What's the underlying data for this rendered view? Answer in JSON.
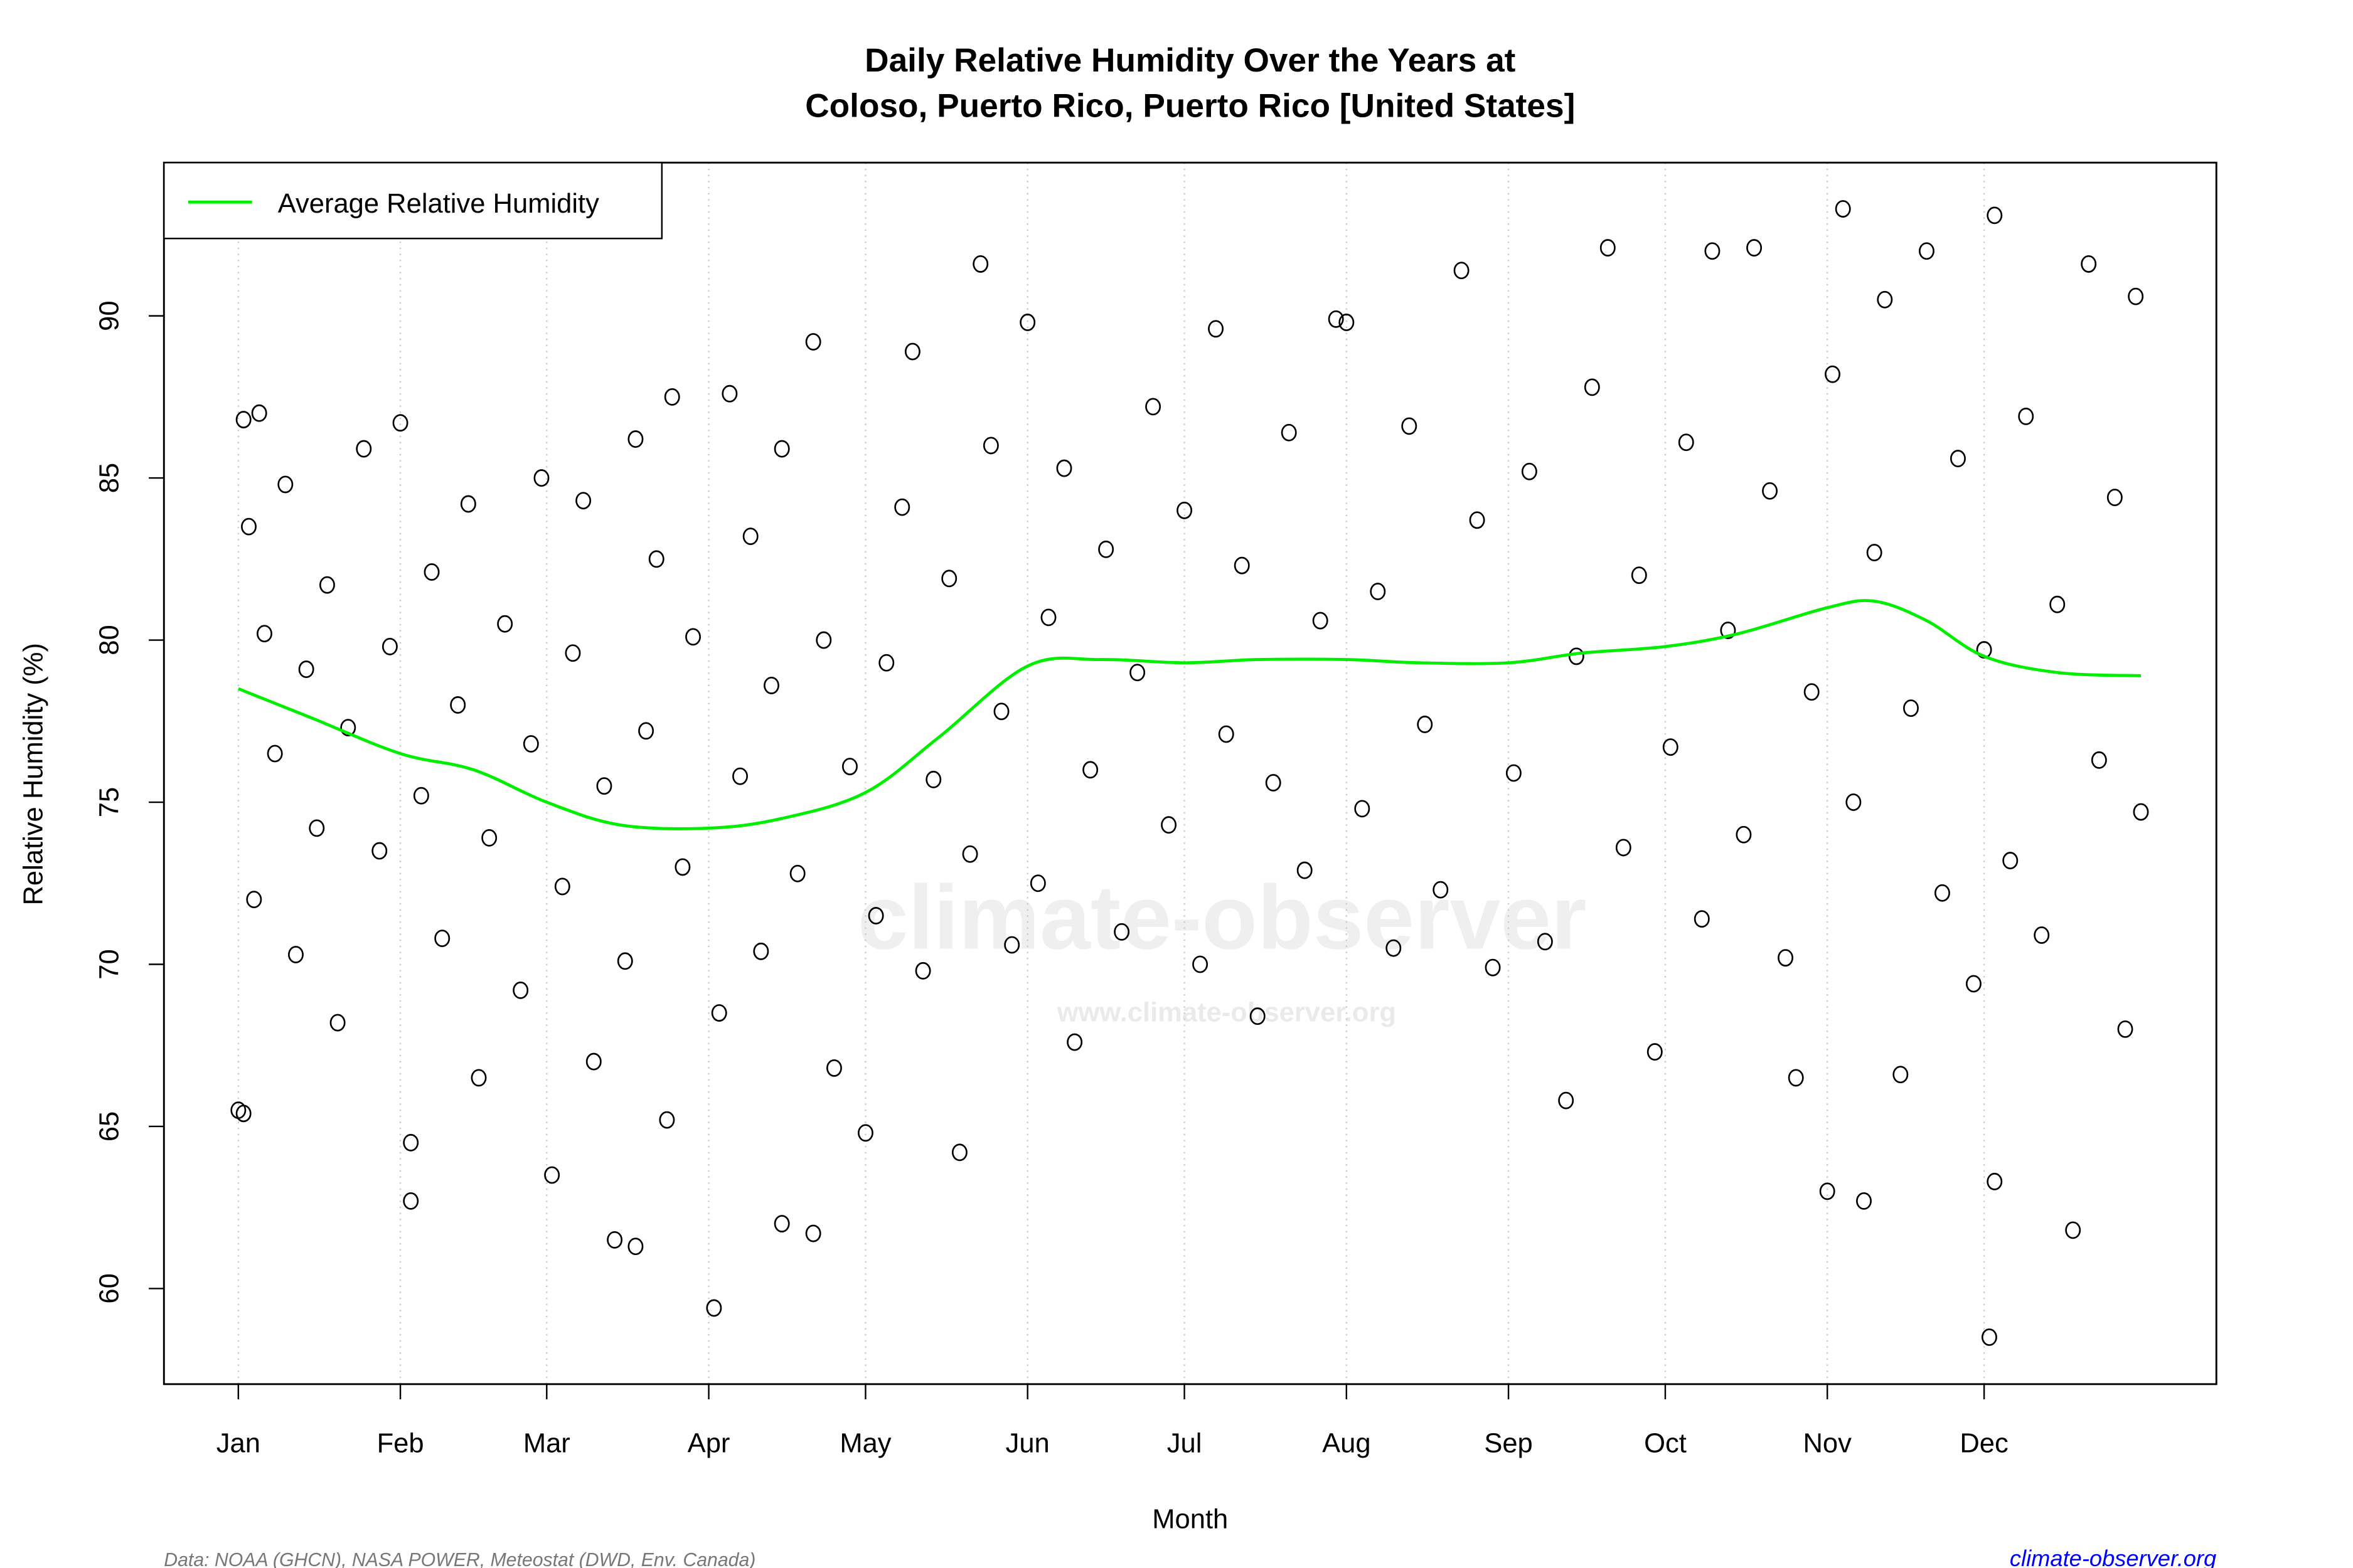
{
  "chart_data": {
    "type": "scatter",
    "title_line1": "Daily Relative Humidity Over the Years at",
    "title_line2": "Coloso, Puerto Rico, Puerto Rico [United States]",
    "xlabel": "Month",
    "ylabel": "Relative Humidity  (%)",
    "x_ticks": [
      "Jan",
      "Feb",
      "Mar",
      "Apr",
      "May",
      "Jun",
      "Jul",
      "Aug",
      "Sep",
      "Oct",
      "Nov",
      "Dec"
    ],
    "y_ticks": [
      60,
      65,
      70,
      75,
      80,
      85,
      90
    ],
    "ylim": [
      57.5,
      95
    ],
    "grid": "vertical dotted at month starts",
    "legend": {
      "placement": "top-left",
      "entries": [
        {
          "label": "Average Relative Humidity",
          "color": "#00ee00"
        }
      ]
    },
    "point_color": "#000000",
    "average_line": {
      "name": "Average Relative Humidity",
      "points": [
        [
          "01-01",
          78.5
        ],
        [
          "01-15",
          77.6
        ],
        [
          "02-01",
          76.5
        ],
        [
          "02-15",
          76.0
        ],
        [
          "03-01",
          75.0
        ],
        [
          "03-15",
          74.3
        ],
        [
          "04-01",
          74.2
        ],
        [
          "04-15",
          74.5
        ],
        [
          "05-01",
          75.3
        ],
        [
          "05-15",
          77.0
        ],
        [
          "06-01",
          79.2
        ],
        [
          "06-15",
          79.4
        ],
        [
          "07-01",
          79.3
        ],
        [
          "07-15",
          79.4
        ],
        [
          "08-01",
          79.4
        ],
        [
          "08-15",
          79.3
        ],
        [
          "09-01",
          79.3
        ],
        [
          "09-15",
          79.6
        ],
        [
          "10-01",
          79.8
        ],
        [
          "10-15",
          80.2
        ],
        [
          "11-01",
          81.0
        ],
        [
          "11-10",
          81.2
        ],
        [
          "11-20",
          80.6
        ],
        [
          "12-01",
          79.5
        ],
        [
          "12-15",
          79.0
        ],
        [
          "12-31",
          78.9
        ]
      ]
    },
    "points": [
      [
        "01-01",
        65.5
      ],
      [
        "01-02",
        65.4
      ],
      [
        "01-02",
        86.8
      ],
      [
        "01-05",
        87.0
      ],
      [
        "01-03",
        83.5
      ],
      [
        "01-04",
        72.0
      ],
      [
        "01-06",
        80.2
      ],
      [
        "01-08",
        76.5
      ],
      [
        "01-10",
        84.8
      ],
      [
        "01-12",
        70.3
      ],
      [
        "01-14",
        79.1
      ],
      [
        "01-16",
        74.2
      ],
      [
        "01-18",
        81.7
      ],
      [
        "01-20",
        68.2
      ],
      [
        "01-22",
        77.3
      ],
      [
        "01-25",
        85.9
      ],
      [
        "01-28",
        73.5
      ],
      [
        "01-30",
        79.8
      ],
      [
        "02-01",
        86.7
      ],
      [
        "02-03",
        62.7
      ],
      [
        "02-03",
        64.5
      ],
      [
        "02-05",
        75.2
      ],
      [
        "02-07",
        82.1
      ],
      [
        "02-09",
        70.8
      ],
      [
        "02-12",
        78.0
      ],
      [
        "02-14",
        84.2
      ],
      [
        "02-16",
        66.5
      ],
      [
        "02-18",
        73.9
      ],
      [
        "02-21",
        80.5
      ],
      [
        "02-24",
        69.2
      ],
      [
        "02-26",
        76.8
      ],
      [
        "02-28",
        85.0
      ],
      [
        "03-02",
        63.5
      ],
      [
        "03-04",
        72.4
      ],
      [
        "03-06",
        79.6
      ],
      [
        "03-08",
        84.3
      ],
      [
        "03-10",
        67.0
      ],
      [
        "03-12",
        75.5
      ],
      [
        "03-14",
        61.5
      ],
      [
        "03-16",
        70.1
      ],
      [
        "03-18",
        61.3
      ],
      [
        "03-18",
        86.2
      ],
      [
        "03-20",
        77.2
      ],
      [
        "03-22",
        82.5
      ],
      [
        "03-24",
        65.2
      ],
      [
        "03-25",
        87.5
      ],
      [
        "03-27",
        73.0
      ],
      [
        "03-29",
        80.1
      ],
      [
        "04-02",
        59.4
      ],
      [
        "04-03",
        68.5
      ],
      [
        "04-05",
        87.6
      ],
      [
        "04-07",
        75.8
      ],
      [
        "04-09",
        83.2
      ],
      [
        "04-11",
        70.4
      ],
      [
        "04-13",
        78.6
      ],
      [
        "04-15",
        62.0
      ],
      [
        "04-15",
        85.9
      ],
      [
        "04-18",
        72.8
      ],
      [
        "04-21",
        61.7
      ],
      [
        "04-21",
        89.2
      ],
      [
        "04-23",
        80.0
      ],
      [
        "04-25",
        66.8
      ],
      [
        "04-28",
        76.1
      ],
      [
        "05-01",
        64.8
      ],
      [
        "05-03",
        71.5
      ],
      [
        "05-05",
        79.3
      ],
      [
        "05-08",
        84.1
      ],
      [
        "05-10",
        88.9
      ],
      [
        "05-12",
        69.8
      ],
      [
        "05-14",
        75.7
      ],
      [
        "05-17",
        81.9
      ],
      [
        "05-19",
        64.2
      ],
      [
        "05-21",
        73.4
      ],
      [
        "05-23",
        91.6
      ],
      [
        "05-25",
        86.0
      ],
      [
        "05-27",
        77.8
      ],
      [
        "05-29",
        70.6
      ],
      [
        "06-01",
        89.8
      ],
      [
        "06-03",
        72.5
      ],
      [
        "06-05",
        80.7
      ],
      [
        "06-08",
        85.3
      ],
      [
        "06-10",
        67.6
      ],
      [
        "06-13",
        76.0
      ],
      [
        "06-16",
        82.8
      ],
      [
        "06-19",
        71.0
      ],
      [
        "06-22",
        79.0
      ],
      [
        "06-25",
        87.2
      ],
      [
        "06-28",
        74.3
      ],
      [
        "07-01",
        84.0
      ],
      [
        "07-04",
        70.0
      ],
      [
        "07-07",
        89.6
      ],
      [
        "07-09",
        77.1
      ],
      [
        "07-12",
        82.3
      ],
      [
        "07-15",
        68.4
      ],
      [
        "07-18",
        75.6
      ],
      [
        "07-21",
        86.4
      ],
      [
        "07-24",
        72.9
      ],
      [
        "07-27",
        80.6
      ],
      [
        "07-30",
        89.9
      ],
      [
        "08-01",
        89.8
      ],
      [
        "08-04",
        74.8
      ],
      [
        "08-07",
        81.5
      ],
      [
        "08-10",
        70.5
      ],
      [
        "08-13",
        86.6
      ],
      [
        "08-16",
        77.4
      ],
      [
        "08-19",
        72.3
      ],
      [
        "08-23",
        91.4
      ],
      [
        "08-26",
        83.7
      ],
      [
        "08-29",
        69.9
      ],
      [
        "09-02",
        75.9
      ],
      [
        "09-05",
        85.2
      ],
      [
        "09-08",
        70.7
      ],
      [
        "09-12",
        65.8
      ],
      [
        "09-14",
        79.5
      ],
      [
        "09-17",
        87.8
      ],
      [
        "09-20",
        92.1
      ],
      [
        "09-23",
        73.6
      ],
      [
        "09-26",
        82.0
      ],
      [
        "09-29",
        67.3
      ],
      [
        "10-02",
        76.7
      ],
      [
        "10-05",
        86.1
      ],
      [
        "10-08",
        71.4
      ],
      [
        "10-10",
        92.0
      ],
      [
        "10-13",
        80.3
      ],
      [
        "10-16",
        74.0
      ],
      [
        "10-18",
        92.1
      ],
      [
        "10-21",
        84.6
      ],
      [
        "10-24",
        70.2
      ],
      [
        "10-26",
        66.5
      ],
      [
        "10-29",
        78.4
      ],
      [
        "11-01",
        63.0
      ],
      [
        "11-02",
        88.2
      ],
      [
        "11-04",
        93.3
      ],
      [
        "11-06",
        75.0
      ],
      [
        "11-08",
        62.7
      ],
      [
        "11-10",
        82.7
      ],
      [
        "11-12",
        90.5
      ],
      [
        "11-15",
        66.6
      ],
      [
        "11-17",
        77.9
      ],
      [
        "11-20",
        92.0
      ],
      [
        "11-23",
        72.2
      ],
      [
        "11-26",
        85.6
      ],
      [
        "11-29",
        69.4
      ],
      [
        "12-01",
        79.7
      ],
      [
        "12-02",
        58.5
      ],
      [
        "12-03",
        93.1
      ],
      [
        "12-03",
        63.3
      ],
      [
        "12-06",
        73.2
      ],
      [
        "12-09",
        86.9
      ],
      [
        "12-12",
        70.9
      ],
      [
        "12-15",
        81.1
      ],
      [
        "12-18",
        61.8
      ],
      [
        "12-21",
        91.6
      ],
      [
        "12-23",
        76.3
      ],
      [
        "12-26",
        84.4
      ],
      [
        "12-28",
        68.0
      ],
      [
        "12-30",
        90.6
      ],
      [
        "12-31",
        74.7
      ]
    ]
  },
  "footer": {
    "source": "Data: NOAA (GHCN), NASA POWER, Meteostat (DWD, Env. Canada)",
    "site": "climate-observer.org"
  },
  "watermark": {
    "big": "climate-observer",
    "small": "www.climate-observer.org"
  }
}
